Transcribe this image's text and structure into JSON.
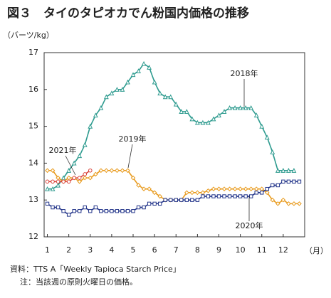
{
  "chart_data": {
    "type": "line",
    "title": "図３　タイのタピオカでん粉国内価格の推移",
    "y_label": "（バーツ/kg）",
    "x_label": "（月）",
    "source": "資料：TTS A「Weekly Tapioca Starch Price」",
    "note": "注：当該週の原則火曜日の価格。",
    "xlim": [
      0.85,
      13.0
    ],
    "xticks": [
      1,
      2,
      3,
      4,
      5,
      6,
      7,
      8,
      9,
      10,
      11,
      12
    ],
    "ylim": [
      12,
      17
    ],
    "yticks": [
      12,
      13,
      14,
      15,
      16,
      17
    ],
    "grid": false,
    "series": [
      {
        "name": "2018年",
        "color": "#2e9b8f",
        "marker": "triangle",
        "x": [
          1.0,
          1.25,
          1.5,
          1.75,
          2.0,
          2.25,
          2.5,
          2.75,
          3.0,
          3.25,
          3.5,
          3.75,
          4.0,
          4.25,
          4.5,
          4.75,
          5.0,
          5.25,
          5.5,
          5.75,
          6.0,
          6.25,
          6.5,
          6.75,
          7.0,
          7.25,
          7.5,
          7.75,
          8.0,
          8.25,
          8.5,
          8.75,
          9.0,
          9.25,
          9.5,
          9.75,
          10.0,
          10.25,
          10.5,
          10.75,
          11.0,
          11.25,
          11.5,
          11.75,
          12.0,
          12.25,
          12.5
        ],
        "values": [
          13.3,
          13.3,
          13.4,
          13.6,
          13.8,
          14.0,
          14.2,
          14.5,
          15.0,
          15.3,
          15.5,
          15.8,
          15.9,
          16.0,
          16.0,
          16.2,
          16.4,
          16.5,
          16.7,
          16.6,
          16.2,
          15.9,
          15.8,
          15.8,
          15.6,
          15.4,
          15.4,
          15.2,
          15.1,
          15.1,
          15.1,
          15.2,
          15.3,
          15.4,
          15.5,
          15.5,
          15.5,
          15.5,
          15.5,
          15.3,
          15.0,
          14.7,
          14.3,
          13.8,
          13.8,
          13.8,
          13.8
        ]
      },
      {
        "name": "2019年",
        "color": "#e89a1c",
        "marker": "diamond",
        "x": [
          1.0,
          1.25,
          1.5,
          1.75,
          2.0,
          2.25,
          2.5,
          2.75,
          3.0,
          3.25,
          3.5,
          3.75,
          4.0,
          4.25,
          4.5,
          4.75,
          5.0,
          5.25,
          5.5,
          5.75,
          6.0,
          6.25,
          6.5,
          6.75,
          7.0,
          7.25,
          7.5,
          7.75,
          8.0,
          8.25,
          8.5,
          8.75,
          9.0,
          9.25,
          9.5,
          9.75,
          10.0,
          10.25,
          10.5,
          10.75,
          11.0,
          11.25,
          11.5,
          11.75,
          12.0,
          12.25,
          12.5,
          12.75
        ],
        "values": [
          13.8,
          13.8,
          13.6,
          13.5,
          13.6,
          13.6,
          13.5,
          13.6,
          13.6,
          13.7,
          13.8,
          13.8,
          13.8,
          13.8,
          13.8,
          13.8,
          13.6,
          13.4,
          13.3,
          13.3,
          13.2,
          13.1,
          13.0,
          13.0,
          13.0,
          13.0,
          13.2,
          13.2,
          13.2,
          13.2,
          13.25,
          13.3,
          13.3,
          13.3,
          13.3,
          13.3,
          13.3,
          13.3,
          13.3,
          13.3,
          13.3,
          13.2,
          13.0,
          12.9,
          13.0,
          12.9,
          12.9,
          12.9
        ]
      },
      {
        "name": "2020年",
        "color": "#23358a",
        "marker": "square",
        "x": [
          1.0,
          1.25,
          1.5,
          1.75,
          2.0,
          2.25,
          2.5,
          2.75,
          3.0,
          3.25,
          3.5,
          3.75,
          4.0,
          4.25,
          4.5,
          4.75,
          5.0,
          5.25,
          5.5,
          5.75,
          6.0,
          6.25,
          6.5,
          6.75,
          7.0,
          7.25,
          7.5,
          7.75,
          8.0,
          8.25,
          8.5,
          8.75,
          9.0,
          9.25,
          9.5,
          9.75,
          10.0,
          10.25,
          10.5,
          10.75,
          11.0,
          11.25,
          11.5,
          11.75,
          12.0,
          12.25,
          12.5,
          12.75
        ],
        "values": [
          12.9,
          12.8,
          12.8,
          12.7,
          12.6,
          12.7,
          12.7,
          12.8,
          12.7,
          12.8,
          12.7,
          12.7,
          12.7,
          12.7,
          12.7,
          12.7,
          12.7,
          12.8,
          12.8,
          12.9,
          12.9,
          12.9,
          13.0,
          13.0,
          13.0,
          13.0,
          13.0,
          13.0,
          13.0,
          13.1,
          13.1,
          13.1,
          13.1,
          13.1,
          13.1,
          13.1,
          13.1,
          13.1,
          13.1,
          13.2,
          13.2,
          13.3,
          13.4,
          13.4,
          13.5,
          13.5,
          13.5,
          13.5
        ]
      },
      {
        "name": "2021年",
        "color": "#d9443a",
        "marker": "circle",
        "x": [
          1.0,
          1.25,
          1.5,
          1.75,
          2.0,
          2.25,
          2.5,
          2.75,
          3.0
        ],
        "values": [
          13.5,
          13.5,
          13.5,
          13.5,
          13.5,
          13.6,
          13.6,
          13.7,
          13.8
        ]
      }
    ]
  }
}
